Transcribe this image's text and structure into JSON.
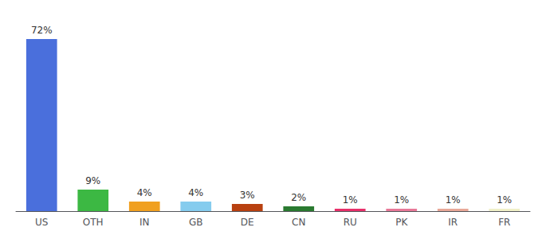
{
  "chart_data": {
    "type": "bar",
    "categories": [
      "US",
      "OTH",
      "IN",
      "GB",
      "DE",
      "CN",
      "RU",
      "PK",
      "IR",
      "FR"
    ],
    "values": [
      72,
      9,
      4,
      4,
      3,
      2,
      1,
      1,
      1,
      1
    ],
    "value_labels": [
      "72%",
      "9%",
      "4%",
      "4%",
      "3%",
      "2%",
      "1%",
      "1%",
      "1%",
      "1%"
    ],
    "colors": [
      "#4a6fdc",
      "#3cb843",
      "#f0a020",
      "#85ccee",
      "#b84010",
      "#2a7a30",
      "#e8306a",
      "#e87898",
      "#e8a898",
      "#f0f0c8"
    ],
    "ylim": [
      0,
      80
    ],
    "data_labels": true,
    "tick_labels": "x",
    "grid": false
  }
}
